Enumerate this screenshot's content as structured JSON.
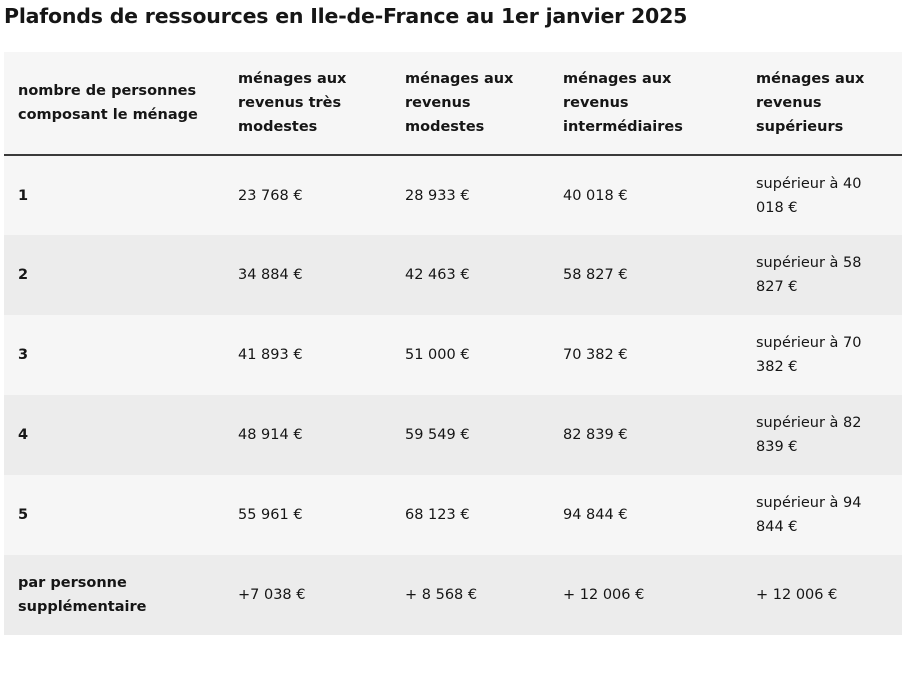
{
  "title": "Plafonds de ressources en Ile-de-France au 1er janvier 2025",
  "table": {
    "headers": [
      "nombre de personnes composant le ménage",
      "ménages aux revenus très modestes",
      "ménages aux revenus modestes",
      "ménages aux revenus intermédiaires",
      "ménages aux revenus supérieurs"
    ],
    "rows": [
      [
        "1",
        "23 768 €",
        "28 933 €",
        "40 018 €",
        "supérieur à 40 018 €"
      ],
      [
        "2",
        "34 884 €",
        "42 463 €",
        "58 827 €",
        "supérieur à 58 827 €"
      ],
      [
        "3",
        "41 893 €",
        "51 000 €",
        "70 382 €",
        "supérieur à 70 382 €"
      ],
      [
        "4",
        "48 914 €",
        "59 549 €",
        "82 839 €",
        "supérieur à 82 839 €"
      ],
      [
        "5",
        "55 961 €",
        "68 123 €",
        "94 844 €",
        "supérieur à 94 844 €"
      ],
      [
        "par personne supplémentaire",
        "+7 038 €",
        "+ 8 568 €",
        "+ 12 006 €",
        "+ 12 006 €"
      ]
    ]
  }
}
